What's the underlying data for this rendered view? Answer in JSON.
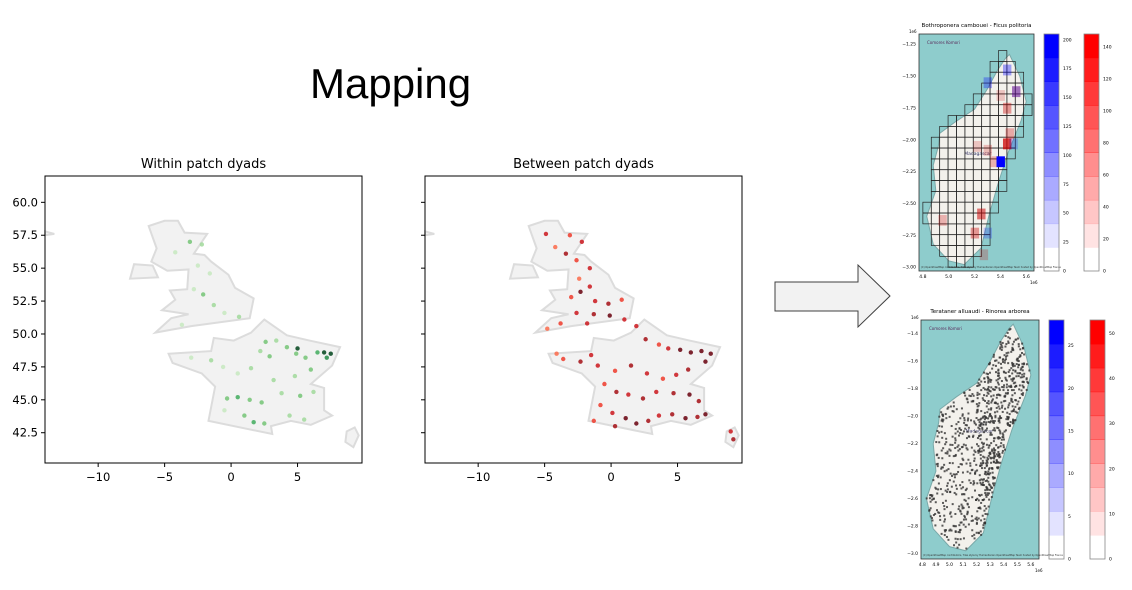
{
  "slide": {
    "title": "Mapping"
  },
  "arrow": {
    "fill": "#f2f2f2",
    "stroke": "#404040"
  },
  "chart_data": [
    {
      "type": "scatter",
      "title": "Within patch dyads",
      "xlim": [
        -14,
        9.85
      ],
      "ylim": [
        40.2,
        62
      ],
      "xticks": [
        -10,
        -5,
        0,
        5
      ],
      "xtick_labels": [
        "−10",
        "−5",
        "0",
        "5"
      ],
      "yticks": [
        42.5,
        45.0,
        47.5,
        50.0,
        52.5,
        55.0,
        57.5,
        60.0
      ],
      "ytick_labels": [
        "42.5",
        "45.0",
        "47.5",
        "50.0",
        "52.5",
        "55.0",
        "57.5",
        "60.0"
      ],
      "colormap": "Greens",
      "basemap": "Great Britain and France outline",
      "points": [
        [
          -2.2,
          56.8,
          0.3
        ],
        [
          -3.1,
          57.0,
          0.4
        ],
        [
          -4.2,
          56.2,
          0.2
        ],
        [
          -2.5,
          55.2,
          0.2
        ],
        [
          -1.6,
          54.6,
          0.25
        ],
        [
          -2.1,
          53.0,
          0.5
        ],
        [
          -2.8,
          53.4,
          0.2
        ],
        [
          -1.3,
          52.2,
          0.3
        ],
        [
          -0.5,
          51.6,
          0.2
        ],
        [
          -3.7,
          50.7,
          0.2
        ],
        [
          0.6,
          51.3,
          0.3
        ],
        [
          2.2,
          48.7,
          0.3
        ],
        [
          2.6,
          49.4,
          0.4
        ],
        [
          3.4,
          49.5,
          0.3
        ],
        [
          2.9,
          48.3,
          0.5
        ],
        [
          4.2,
          49.0,
          0.5
        ],
        [
          4.9,
          48.5,
          0.4
        ],
        [
          5.0,
          48.9,
          0.9
        ],
        [
          5.6,
          48.2,
          0.5
        ],
        [
          6.5,
          48.6,
          0.6
        ],
        [
          7.0,
          48.6,
          0.9
        ],
        [
          7.5,
          48.5,
          1.0
        ],
        [
          7.2,
          48.2,
          0.7
        ],
        [
          6.0,
          47.3,
          0.4
        ],
        [
          4.8,
          46.8,
          0.3
        ],
        [
          3.2,
          46.5,
          0.3
        ],
        [
          1.5,
          47.4,
          0.3
        ],
        [
          0.5,
          47.0,
          0.2
        ],
        [
          -0.6,
          47.5,
          0.2
        ],
        [
          -1.5,
          48.0,
          0.3
        ],
        [
          -3.0,
          48.2,
          0.2
        ],
        [
          -0.3,
          45.1,
          0.5
        ],
        [
          0.5,
          45.2,
          0.6
        ],
        [
          1.4,
          45.0,
          0.4
        ],
        [
          2.3,
          44.8,
          0.4
        ],
        [
          3.8,
          45.5,
          0.3
        ],
        [
          5.2,
          45.3,
          0.4
        ],
        [
          6.2,
          45.6,
          0.3
        ],
        [
          1.0,
          43.8,
          0.4
        ],
        [
          1.7,
          43.3,
          0.6
        ],
        [
          2.5,
          43.2,
          0.5
        ],
        [
          4.4,
          43.8,
          0.3
        ],
        [
          5.5,
          43.5,
          0.3
        ],
        [
          -0.5,
          44.2,
          0.2
        ]
      ]
    },
    {
      "type": "scatter",
      "title": "Between patch dyads",
      "xlim": [
        -14,
        9.85
      ],
      "ylim": [
        40.2,
        62
      ],
      "xticks": [
        -10,
        -5,
        0,
        5
      ],
      "xtick_labels": [
        "−10",
        "−5",
        "0",
        "5"
      ],
      "yticks": [
        42.5,
        45.0,
        47.5,
        50.0,
        52.5,
        55.0,
        57.5,
        60.0
      ],
      "ytick_labels": [
        "42.5",
        "45.0",
        "47.5",
        "50.0",
        "52.5",
        "55.0",
        "57.5",
        "60.0"
      ],
      "colormap": "Reds",
      "basemap": "Great Britain and France outline",
      "points": [
        [
          -4.9,
          57.6,
          0.7
        ],
        [
          -3.1,
          57.5,
          0.6
        ],
        [
          -2.2,
          57.0,
          0.7
        ],
        [
          -4.2,
          56.6,
          0.5
        ],
        [
          -3.4,
          56.1,
          0.8
        ],
        [
          -2.6,
          55.6,
          0.6
        ],
        [
          -1.6,
          55.0,
          0.7
        ],
        [
          -2.4,
          54.2,
          0.5
        ],
        [
          -1.6,
          53.6,
          0.7
        ],
        [
          -2.3,
          53.2,
          0.9
        ],
        [
          -3.0,
          52.8,
          0.6
        ],
        [
          -1.2,
          52.5,
          0.7
        ],
        [
          -0.2,
          52.3,
          0.8
        ],
        [
          0.8,
          52.6,
          0.6
        ],
        [
          -2.6,
          51.6,
          0.7
        ],
        [
          -1.3,
          51.5,
          0.8
        ],
        [
          -0.1,
          51.4,
          0.9
        ],
        [
          1.0,
          51.1,
          0.7
        ],
        [
          -3.8,
          50.8,
          0.6
        ],
        [
          -4.8,
          50.4,
          0.5
        ],
        [
          -1.8,
          50.8,
          0.7
        ],
        [
          1.9,
          50.6,
          0.7
        ],
        [
          2.6,
          49.6,
          0.8
        ],
        [
          3.6,
          49.2,
          0.6
        ],
        [
          4.3,
          48.9,
          0.7
        ],
        [
          5.2,
          48.8,
          1.0
        ],
        [
          6.0,
          48.6,
          0.9
        ],
        [
          6.8,
          48.7,
          1.0
        ],
        [
          7.5,
          48.5,
          1.0
        ],
        [
          7.1,
          47.9,
          0.9
        ],
        [
          5.8,
          47.3,
          0.8
        ],
        [
          4.9,
          46.9,
          0.7
        ],
        [
          3.9,
          46.6,
          0.6
        ],
        [
          2.7,
          47.0,
          0.7
        ],
        [
          1.5,
          47.6,
          0.8
        ],
        [
          0.3,
          47.2,
          0.6
        ],
        [
          -1.0,
          47.6,
          0.7
        ],
        [
          -2.3,
          47.9,
          0.8
        ],
        [
          -3.6,
          48.1,
          0.6
        ],
        [
          -4.1,
          48.5,
          0.5
        ],
        [
          -1.5,
          48.4,
          0.7
        ],
        [
          -0.5,
          46.2,
          0.6
        ],
        [
          0.4,
          45.6,
          0.8
        ],
        [
          1.3,
          45.4,
          0.7
        ],
        [
          2.4,
          45.1,
          0.8
        ],
        [
          3.4,
          45.6,
          0.7
        ],
        [
          4.7,
          45.5,
          0.8
        ],
        [
          5.9,
          45.4,
          0.9
        ],
        [
          6.6,
          44.9,
          0.8
        ],
        [
          -0.8,
          44.6,
          0.6
        ],
        [
          0.1,
          44.0,
          0.7
        ],
        [
          1.1,
          43.6,
          0.9
        ],
        [
          1.9,
          43.2,
          1.0
        ],
        [
          2.8,
          43.4,
          0.8
        ],
        [
          3.6,
          43.8,
          0.7
        ],
        [
          4.6,
          43.9,
          0.8
        ],
        [
          5.6,
          43.6,
          0.9
        ],
        [
          6.5,
          43.7,
          0.8
        ],
        [
          7.1,
          43.9,
          1.0
        ],
        [
          -1.3,
          43.4,
          0.6
        ],
        [
          0.3,
          43.0,
          0.8
        ],
        [
          9.0,
          42.6,
          0.7
        ],
        [
          9.2,
          42.0,
          0.8
        ]
      ]
    }
  ],
  "maps": [
    {
      "title": "Bothroponera cambouei - Ficus politoria",
      "x_exponent": "1e6",
      "y_exponent": "1e6",
      "xlim": [
        4.77,
        5.66
      ],
      "ylim": [
        -3.03,
        -1.17
      ],
      "xticks": [
        4.8,
        5.0,
        5.2,
        5.4,
        5.6
      ],
      "xtick_labels": [
        "4.8",
        "5.0",
        "5.2",
        "5.4",
        "5.6"
      ],
      "yticks": [
        -1.25,
        -1.5,
        -1.75,
        -2.0,
        -2.25,
        -2.5,
        -2.75,
        -3.0
      ],
      "ytick_labels": [
        "−1.25",
        "−1.50",
        "−1.75",
        "−2.00",
        "−2.25",
        "−2.50",
        "−2.75",
        "−3.00"
      ],
      "place_labels": [
        "Comores Komori",
        "Madagascar"
      ],
      "attribution": "(C) OpenStreetMap contributors, Tiles style by Humanitarian OpenStreetMap Team hosted by OpenStreetMap France",
      "style": "grid",
      "cells_red": [
        [
          5.45,
          -2.03,
          1.0
        ],
        [
          5.25,
          -2.58,
          0.7
        ],
        [
          5.45,
          -1.75,
          0.5
        ],
        [
          5.47,
          -1.95,
          0.4
        ],
        [
          4.95,
          -2.63,
          0.35
        ],
        [
          5.2,
          -2.73,
          0.5
        ],
        [
          5.3,
          -2.08,
          0.3
        ],
        [
          5.35,
          -2.17,
          0.35
        ],
        [
          5.22,
          -2.05,
          0.25
        ],
        [
          5.4,
          -1.65,
          0.25
        ],
        [
          5.52,
          -1.62,
          0.45
        ],
        [
          5.27,
          -2.9,
          0.3
        ]
      ],
      "cells_blue": [
        [
          5.4,
          -2.17,
          1.0
        ],
        [
          5.45,
          -1.45,
          0.35
        ],
        [
          5.52,
          -1.62,
          0.3
        ],
        [
          5.3,
          -1.55,
          0.3
        ],
        [
          5.5,
          -2.03,
          0.2
        ],
        [
          5.3,
          -2.73,
          0.2
        ]
      ],
      "colorbar_blue": {
        "max": 205,
        "ticks": [
          0,
          25,
          50,
          75,
          100,
          125,
          150,
          175,
          200
        ],
        "color": "#0000ff"
      },
      "colorbar_red": {
        "max": 148,
        "ticks": [
          0,
          20,
          40,
          60,
          80,
          100,
          120,
          140
        ],
        "color": "#ff0000"
      }
    },
    {
      "title": "Terataner alluaudi - Rinorea arborea",
      "x_exponent": "1e6",
      "y_exponent": "1e6",
      "xlim": [
        4.79,
        5.66
      ],
      "ylim": [
        -3.04,
        -1.3
      ],
      "xticks": [
        4.8,
        4.9,
        5.0,
        5.1,
        5.2,
        5.3,
        5.4,
        5.5,
        5.6
      ],
      "xtick_labels": [
        "4.8",
        "4.9",
        "5.0",
        "5.1",
        "5.2",
        "5.3",
        "5.4",
        "5.5",
        "5.6"
      ],
      "yticks": [
        -1.4,
        -1.6,
        -1.8,
        -2.0,
        -2.2,
        -2.4,
        -2.6,
        -2.8,
        -3.0
      ],
      "ytick_labels": [
        "−1.4",
        "−1.6",
        "−1.8",
        "−2.0",
        "−2.2",
        "−2.4",
        "−2.6",
        "−2.8",
        "−3.0"
      ],
      "place_labels": [
        "Comores Komori",
        "Madagascar"
      ],
      "attribution": "(C) OpenStreetMap contributors, Tiles style by Humanitarian OpenStreetMap Team hosted by OpenStreetMap France",
      "style": "points",
      "colorbar_blue": {
        "max": 28,
        "ticks": [
          0,
          5,
          10,
          15,
          20,
          25
        ],
        "color": "#0000ff"
      },
      "colorbar_red": {
        "max": 53,
        "ticks": [
          0,
          10,
          20,
          30,
          40,
          50
        ],
        "color": "#ff0000"
      }
    }
  ]
}
